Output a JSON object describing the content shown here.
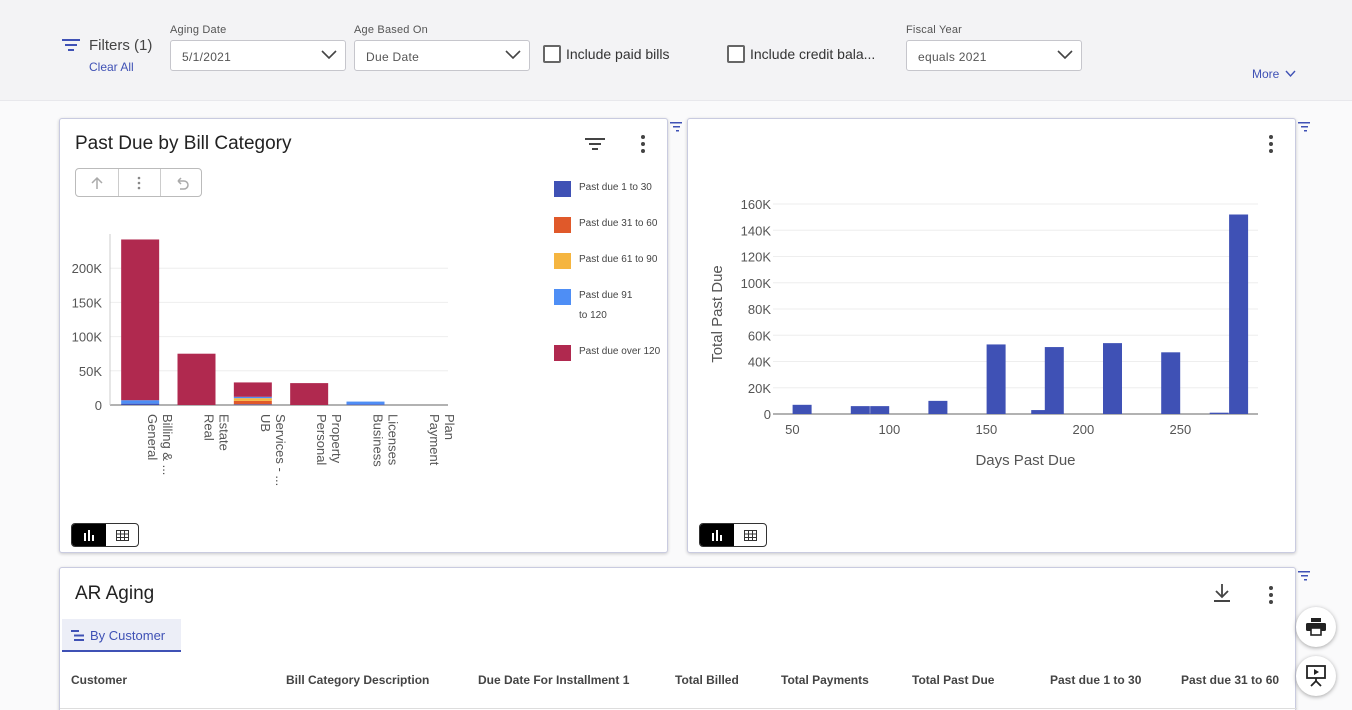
{
  "filters": {
    "label": "Filters (1)",
    "clear_all": "Clear All",
    "aging_date": {
      "label": "Aging Date",
      "value": "5/1/2021"
    },
    "age_based_on": {
      "label": "Age Based On",
      "value": "Due Date"
    },
    "include_paid_bills": {
      "label": "Include paid bills",
      "checked": false
    },
    "include_credit": {
      "label": "Include credit bala...",
      "checked": false
    },
    "fiscal_year": {
      "label": "Fiscal Year",
      "value": "equals 2021"
    },
    "more": "More"
  },
  "card_bill_category": {
    "title": "Past Due by Bill Category",
    "views": [
      "chart-view",
      "table-view"
    ],
    "active_view": "chart-view"
  },
  "card_days_past_due": {
    "views": [
      "chart-view",
      "table-view"
    ],
    "active_view": "chart-view"
  },
  "chart_data": [
    {
      "type": "bar",
      "stacked": true,
      "categories": [
        "General Billing & ...",
        "Real Estate",
        "UB Services - ...",
        "Personal Property",
        "Business Licenses",
        "Payment Plan"
      ],
      "series": [
        {
          "name": "Past due 1 to 30",
          "color": "#3f51b5",
          "values": [
            2000,
            0,
            1000,
            0,
            1000,
            0
          ]
        },
        {
          "name": "Past due 31 to 60",
          "color": "#e0592a",
          "values": [
            0,
            0,
            5000,
            0,
            0,
            0
          ]
        },
        {
          "name": "Past due 61 to 90",
          "color": "#f5b540",
          "values": [
            0,
            0,
            4000,
            0,
            0,
            0
          ]
        },
        {
          "name": "Past due 91 to 120",
          "color": "#4e8ef5",
          "values": [
            5000,
            0,
            2000,
            0,
            4000,
            0
          ]
        },
        {
          "name": "Past due over 120",
          "color": "#b0294f",
          "values": [
            235000,
            75000,
            21000,
            32000,
            0,
            0
          ]
        }
      ],
      "yticks": [
        "0",
        "50K",
        "100K",
        "150K",
        "200K"
      ],
      "ylim": [
        0,
        250000
      ],
      "legend": "right",
      "grid": true
    },
    {
      "type": "bar",
      "color": "#3f51b5",
      "x": [
        55,
        85,
        95,
        125,
        155,
        178,
        185,
        215,
        245,
        270,
        280
      ],
      "values": [
        7000,
        6000,
        6000,
        10000,
        53000,
        3000,
        51000,
        54000,
        47000,
        1000,
        152000
      ],
      "xlabel": "Days Past Due",
      "ylabel": "Total Past Due",
      "xticks": [
        "50",
        "100",
        "150",
        "200",
        "250"
      ],
      "xlim": [
        40,
        290
      ],
      "yticks": [
        "0",
        "20K",
        "40K",
        "60K",
        "80K",
        "100K",
        "120K",
        "140K",
        "160K"
      ],
      "ylim": [
        0,
        160000
      ],
      "grid": true
    }
  ],
  "ar_aging": {
    "title": "AR Aging",
    "tab": "By Customer",
    "columns": [
      "Customer",
      "Bill Category Description",
      "Due Date For Installment 1",
      "Total Billed",
      "Total Payments",
      "Total Past Due",
      "Past due 1 to 30",
      "Past due 31 to 60"
    ]
  },
  "icons": {
    "filter": "filter-lines-icon",
    "kebab": "more-vert-icon",
    "download": "download-icon",
    "print": "print-icon",
    "present": "presentation-icon"
  }
}
